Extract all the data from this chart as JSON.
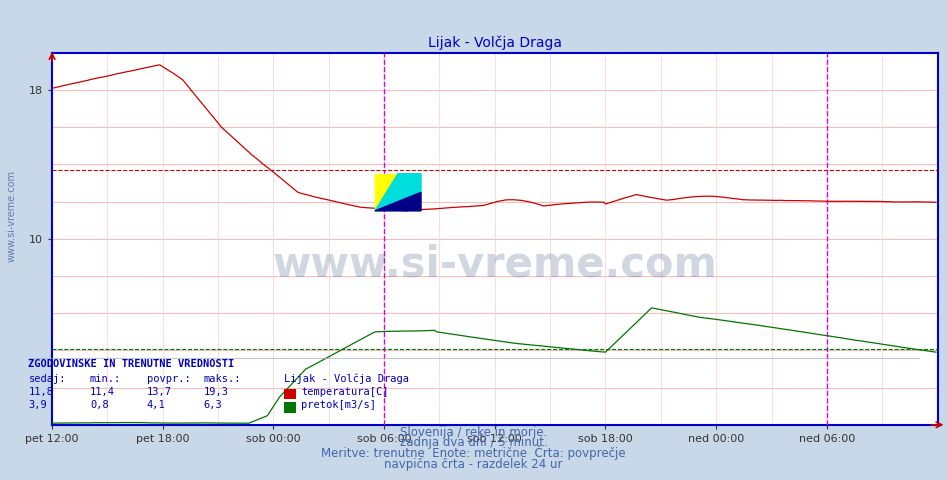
{
  "title": "Lijak - Volčja Draga",
  "title_color": "#0000cc",
  "title_fontsize": 10,
  "background_color": "#c8d8e8",
  "plot_bg_color": "#ffffff",
  "border_color": "#0000cc",
  "grid_color_h": "#ffaaaa",
  "grid_color_v": "#ffcccc",
  "xlim": [
    0,
    576
  ],
  "ylim": [
    0,
    20
  ],
  "yticks": [
    10,
    18
  ],
  "xtick_labels": [
    "pet 12:00",
    "pet 18:00",
    "sob 00:00",
    "sob 06:00",
    "sob 12:00",
    "sob 18:00",
    "ned 00:00",
    "ned 06:00"
  ],
  "xtick_positions": [
    0,
    72,
    144,
    216,
    288,
    360,
    432,
    504
  ],
  "avg_temp": 13.7,
  "avg_pretok": 4.1,
  "temp_color": "#cc0000",
  "pretok_color": "#007700",
  "vertical_line_color": "#dd00dd",
  "vertical_lines": [
    216,
    504
  ],
  "watermark_text": "www.si-vreme.com",
  "watermark_color": "#1a3a6a",
  "watermark_alpha": 0.2,
  "watermark_fontsize": 30,
  "subtitle1": "Slovenija / reke in morje.",
  "subtitle2": "zadnja dva dni / 5 minut.",
  "subtitle3": "Meritve: trenutne  Enote: metrične  Črta: povprečje",
  "subtitle4": "navpična črta - razdelek 24 ur",
  "subtitle_color": "#4466aa",
  "subtitle_fontsize": 8.5,
  "footer_title": "ZGODOVINSKE IN TRENUTNE VREDNOSTI",
  "footer_color": "#0000bb",
  "col_headers": [
    "sedaj:",
    "min.:",
    "povpr.:",
    "maks.:",
    "Lijak - Volčja Draga"
  ],
  "row1_vals": [
    "11,8",
    "11,4",
    "13,7",
    "19,3"
  ],
  "row2_vals": [
    "3,9",
    "0,8",
    "4,1",
    "6,3"
  ],
  "row1_label": "temperatura[C]",
  "row2_label": "pretok[m3/s]"
}
